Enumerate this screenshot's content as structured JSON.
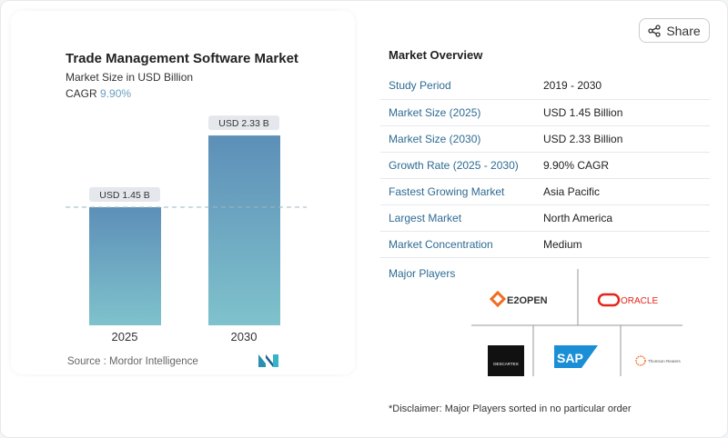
{
  "share_label": "Share",
  "chart_card": {
    "title": "Trade Management Software Market",
    "subtitle": "Market Size in USD Billion",
    "cagr_label": "CAGR",
    "cagr_value": "9.90%",
    "source": "Source :  Mordor Intelligence"
  },
  "chart_data": {
    "type": "bar",
    "categories": [
      "2025",
      "2030"
    ],
    "values": [
      1.45,
      2.33
    ],
    "data_labels": [
      "USD 1.45 B",
      "USD 2.33 B"
    ],
    "title": "Trade Management Software Market",
    "subtitle": "Market Size in USD Billion",
    "ylim": [
      0,
      2.6
    ],
    "colors": {
      "top": "#5d8fb8",
      "bottom": "#7fc2cc"
    },
    "reference_line": "dashed at 2025 value"
  },
  "overview": {
    "title": "Market Overview",
    "rows": [
      {
        "k": "Study Period",
        "v": "2019 - 2030"
      },
      {
        "k": "Market Size (2025)",
        "v": "USD 1.45 Billion"
      },
      {
        "k": "Market Size (2030)",
        "v": "USD 2.33 Billion"
      },
      {
        "k": "Growth Rate (2025 - 2030)",
        "v": "9.90% CAGR"
      },
      {
        "k": "Fastest Growing Market",
        "v": "Asia Pacific"
      },
      {
        "k": "Largest Market",
        "v": "North America"
      },
      {
        "k": "Market Concentration",
        "v": "Medium"
      }
    ],
    "major_players_label": "Major Players",
    "players": [
      "E2OPEN",
      "ORACLE",
      "DESCARTES",
      "SAP",
      "Thomson Reuters"
    ],
    "disclaimer": "*Disclaimer: Major Players sorted in no particular order"
  }
}
